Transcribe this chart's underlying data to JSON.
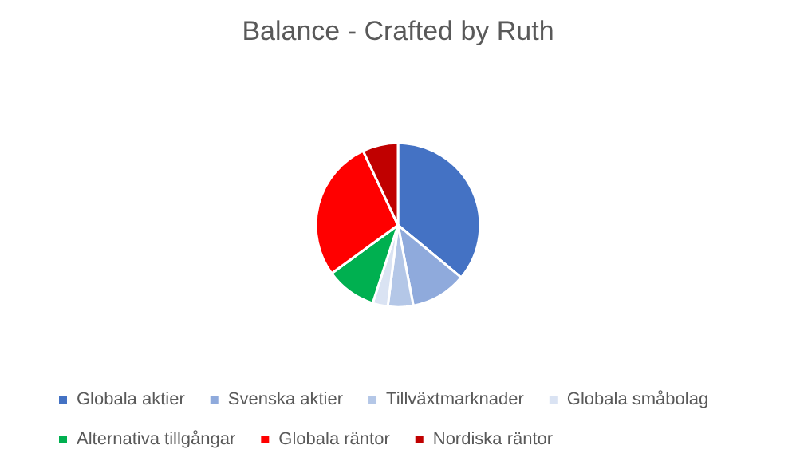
{
  "chart_data": {
    "type": "pie",
    "title": "Balance - Crafted by Ruth",
    "categories": [
      "Globala aktier",
      "Svenska aktier",
      "Tillväxtmarknader",
      "Globala småbolag",
      "Alternativa tillgångar",
      "Globala räntor",
      "Nordiska räntor"
    ],
    "values": [
      36,
      11,
      5,
      3,
      10,
      28,
      7
    ],
    "colors": [
      "#4472c4",
      "#8faadc",
      "#b4c7e7",
      "#dae3f3",
      "#00b050",
      "#ff0000",
      "#c00000"
    ],
    "legend": "bottom"
  }
}
